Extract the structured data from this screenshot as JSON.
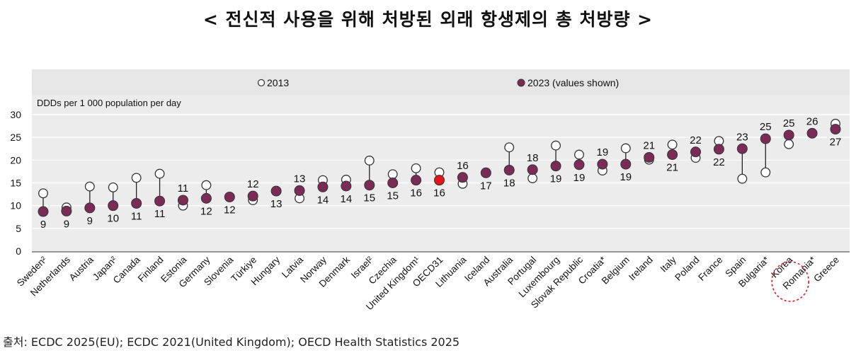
{
  "page_title": "< 전신적 사용을 위해 처방된 외래 항생제의 총 처방량 >",
  "source": "출처: ECDC 2025(EU); ECDC 2021(United Kingdom); OECD Health Statistics 2025",
  "chart_data": {
    "type": "scatter",
    "title": "< 전신적 사용을 위해 처방된 외래 항생제의 총 처방량 >",
    "ylabel": "DDDs per 1 000 population per day",
    "xlabel": "",
    "ylim": [
      0,
      30
    ],
    "yticks": [
      0,
      5,
      10,
      15,
      20,
      25,
      30
    ],
    "grid": true,
    "legend": {
      "placement": "top",
      "entries": [
        {
          "name": "2013",
          "marker": "open-circle"
        },
        {
          "name": "2023 (values shown)",
          "marker": "filled-circle"
        }
      ]
    },
    "colors": {
      "series_2023": "#7b2c56",
      "highlight_oecd": "#e0161b",
      "series_2013": "#ffffff",
      "legend_band": "#e6e6e6",
      "plot_band": "#ececec",
      "highlight_ring": "#e0161b"
    },
    "categories": [
      "Sweden²",
      "Netherlands",
      "Austria",
      "Japan²",
      "Canada",
      "Finland",
      "Estonia",
      "Germany",
      "Slovenia",
      "Türkiye",
      "Hungary",
      "Latvia",
      "Norway",
      "Denmark",
      "Israel²",
      "Czechia",
      "United Kingdom¹",
      "OECD31",
      "Lithuania",
      "Iceland",
      "Australia",
      "Portugal",
      "Luxembourg",
      "Slovak Republic",
      "Croatia*",
      "Belgium",
      "Ireland",
      "Italy",
      "Poland",
      "France",
      "Spain",
      "Bulgaria*",
      "Korea",
      "Romania*",
      "Greece"
    ],
    "highlighted": [
      "OECD31",
      "Korea"
    ],
    "series": [
      {
        "name": "2013",
        "values": [
          12.7,
          9.6,
          14.2,
          14.0,
          16.1,
          17.0,
          10.0,
          14.5,
          null,
          11.2,
          13.2,
          11.6,
          15.6,
          15.7,
          19.9,
          16.9,
          18.2,
          17.3,
          14.8,
          17.3,
          22.8,
          16.0,
          23.2,
          21.2,
          17.7,
          22.6,
          20.1,
          23.4,
          20.5,
          24.2,
          15.9,
          17.3,
          23.5,
          null,
          28.0
        ]
      },
      {
        "name": "2023",
        "values": [
          8.7,
          8.8,
          9.5,
          10.0,
          10.5,
          11.0,
          11.2,
          11.6,
          11.9,
          12.1,
          13.2,
          13.3,
          14.1,
          14.3,
          14.5,
          15.0,
          15.6,
          15.6,
          16.2,
          17.2,
          17.8,
          17.9,
          18.7,
          19.0,
          19.1,
          19.1,
          20.6,
          21.2,
          21.8,
          22.4,
          22.5,
          24.7,
          25.5,
          25.9,
          26.8
        ]
      },
      {
        "name": "2023 labels",
        "values": [
          "9",
          "9",
          "9",
          "10",
          "11",
          "11",
          "11",
          "12",
          "12",
          "12",
          "13",
          "13",
          "14",
          "14",
          "15",
          "15",
          "16",
          "16",
          "16",
          "17",
          "18",
          "18",
          "19",
          "19",
          "19",
          "19",
          "21",
          "21",
          "22",
          "22",
          "23",
          "25",
          "25",
          "26",
          "27"
        ]
      }
    ],
    "label_positions": [
      "below",
      "below",
      "below",
      "below",
      "below",
      "below",
      "above",
      "below",
      "below",
      "above",
      "below",
      "above",
      "below",
      "below",
      "below",
      "below",
      "below",
      "below",
      "above",
      "below",
      "below",
      "above",
      "below",
      "below",
      "above",
      "below",
      "above",
      "below",
      "above",
      "below",
      "above",
      "above",
      "above",
      "above",
      "below"
    ]
  }
}
